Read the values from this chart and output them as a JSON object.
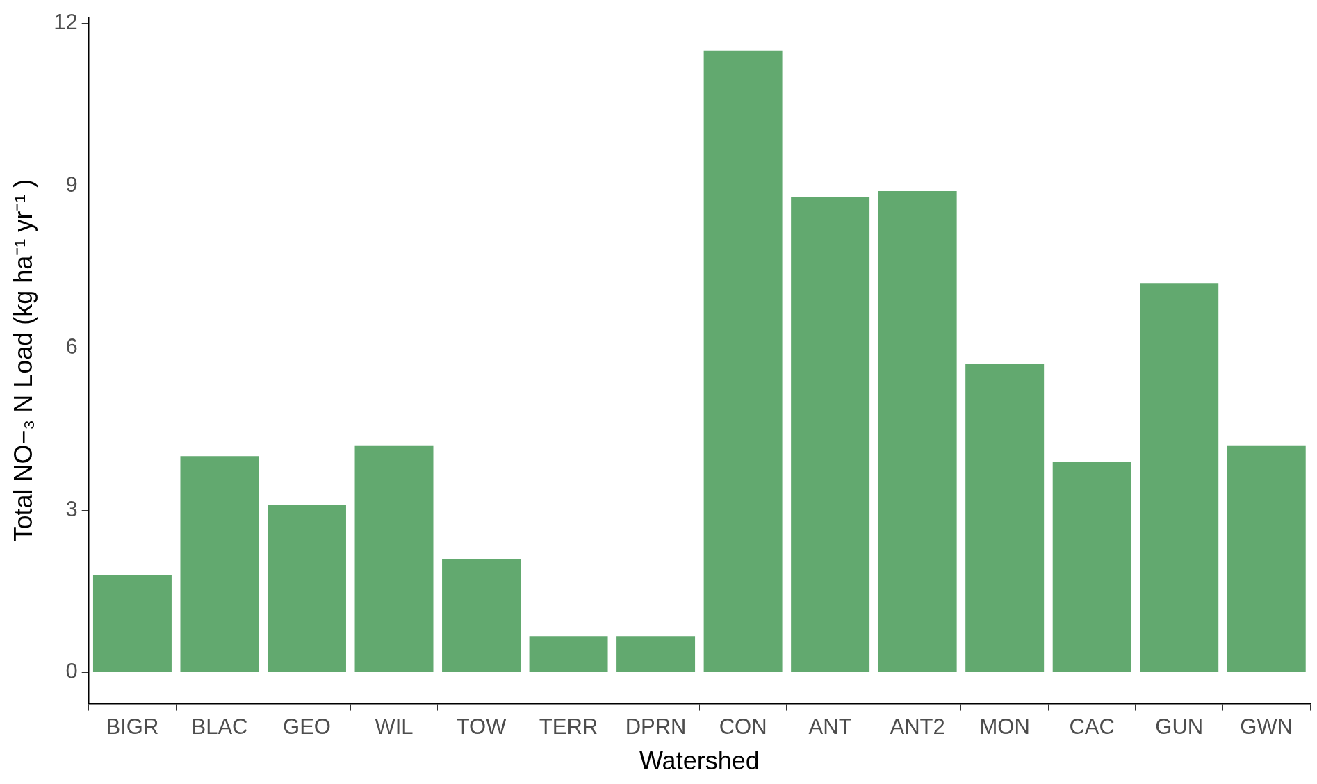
{
  "chart_data": {
    "type": "bar",
    "xlabel": "Watershed",
    "ylabel": "Total NO−₃ N Load (kg ha⁻¹ yr⁻¹ )",
    "categories": [
      "BIGR",
      "BLAC",
      "GEO",
      "WIL",
      "TOW",
      "TERR",
      "DPRN",
      "CON",
      "ANT",
      "ANT2",
      "MON",
      "CAC",
      "GUN",
      "GWN"
    ],
    "values": [
      1.8,
      4.0,
      3.1,
      4.2,
      2.1,
      0.67,
      0.67,
      11.5,
      8.8,
      8.9,
      5.7,
      3.9,
      7.2,
      4.2
    ],
    "color": "#62a96f",
    "ylim": [
      -0.58,
      12.12
    ],
    "yticks": [
      0,
      3,
      6,
      9,
      12
    ],
    "grid": false,
    "legend": false
  }
}
